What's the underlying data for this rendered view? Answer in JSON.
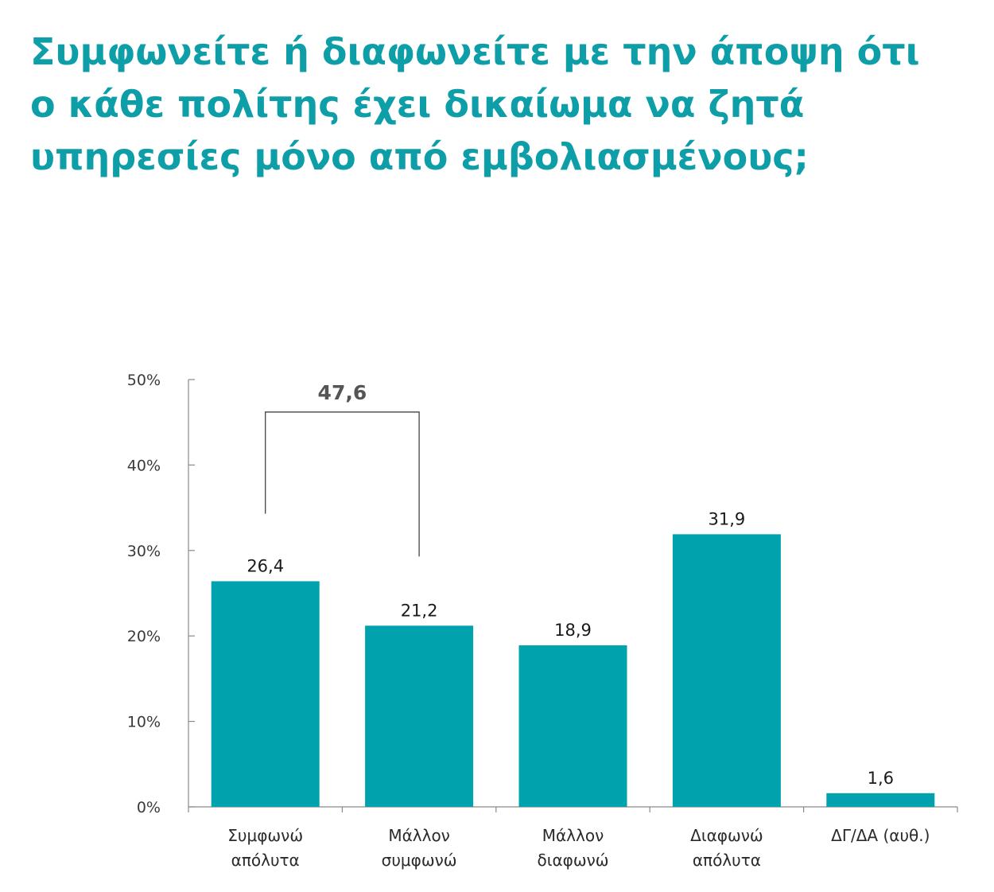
{
  "title_lines": [
    "Συμφωνείτε ή διαφωνείτε με την άποψη ότι",
    "ο κάθε πολίτης έχει δικαίωμα να ζητά",
    "υπηρεσίες μόνο από εμβολιασμένους;"
  ],
  "colors": {
    "title": "#0e9ea8",
    "bar": "#00a3ad",
    "axis": "#8a8a8a",
    "bracket": "#444444"
  },
  "chart_data": {
    "type": "bar",
    "categories": [
      [
        "Συμφωνώ",
        "απόλυτα"
      ],
      [
        "Μάλλον",
        "συμφωνώ"
      ],
      [
        "Μάλλον",
        "διαφωνώ"
      ],
      [
        "Διαφωνώ",
        "απόλυτα"
      ],
      [
        "ΔΓ/ΔΑ (αυθ.)"
      ]
    ],
    "values": [
      26.4,
      21.2,
      18.9,
      31.9,
      1.6
    ],
    "value_labels": [
      "26,4",
      "21,2",
      "18,9",
      "31,9",
      "1,6"
    ],
    "ylim": [
      0,
      50
    ],
    "yticks": [
      0,
      10,
      20,
      30,
      40,
      50
    ],
    "ytick_labels": [
      "0%",
      "10%",
      "20%",
      "30%",
      "40%",
      "50%"
    ],
    "grid": false,
    "legend": "none",
    "annotations": [
      {
        "type": "bracket",
        "from_category": 0,
        "to_category": 1,
        "label": "47,6",
        "value": 47.6
      }
    ]
  }
}
